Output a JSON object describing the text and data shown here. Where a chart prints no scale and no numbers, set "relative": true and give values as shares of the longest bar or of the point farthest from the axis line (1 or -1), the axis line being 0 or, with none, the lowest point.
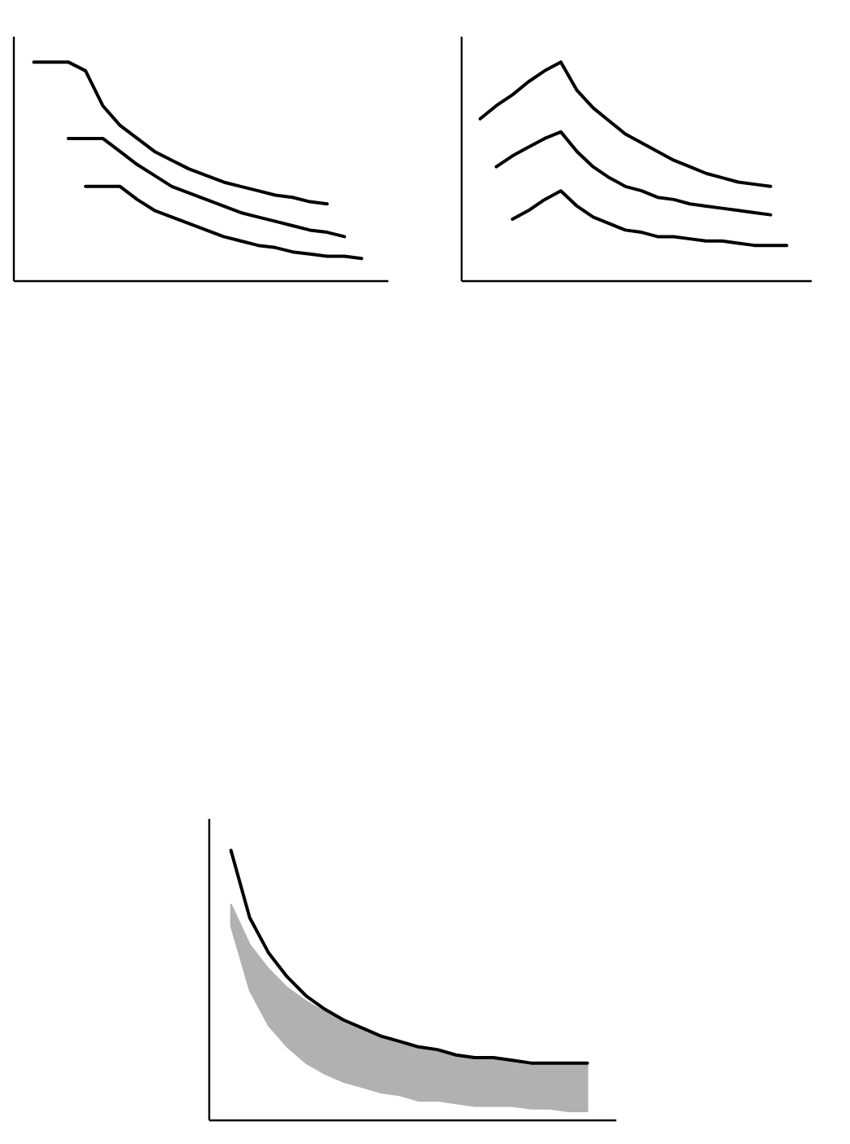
{
  "chart_data": [
    {
      "type": "line",
      "relative": true,
      "tick_labels": false,
      "categories": [
        null,
        null,
        null,
        null,
        null,
        null,
        null,
        null,
        null,
        null,
        null,
        null,
        null,
        null,
        null,
        null,
        null,
        null,
        null,
        null
      ],
      "series": [
        {
          "color": "#000000",
          "values": [
            1.0,
            1.0,
            1.0,
            0.96,
            0.8,
            0.71,
            0.65,
            0.59,
            0.55,
            0.51,
            0.48,
            0.45,
            0.43,
            0.41,
            0.39,
            0.38,
            0.36,
            0.35,
            null,
            null
          ]
        },
        {
          "color": "#000000",
          "values": [
            null,
            null,
            0.65,
            0.65,
            0.65,
            0.59,
            0.53,
            0.48,
            0.43,
            0.4,
            0.37,
            0.34,
            0.31,
            0.29,
            0.27,
            0.25,
            0.23,
            0.22,
            0.2,
            null
          ]
        },
        {
          "color": "#000000",
          "values": [
            null,
            null,
            null,
            0.43,
            0.43,
            0.43,
            0.37,
            0.32,
            0.29,
            0.26,
            0.23,
            0.2,
            0.18,
            0.16,
            0.15,
            0.13,
            0.12,
            0.11,
            0.11,
            0.1
          ]
        }
      ]
    },
    {
      "type": "line",
      "relative": true,
      "tick_labels": false,
      "categories": [
        null,
        null,
        null,
        null,
        null,
        null,
        null,
        null,
        null,
        null,
        null,
        null,
        null,
        null,
        null,
        null,
        null,
        null,
        null,
        null
      ],
      "series": [
        {
          "color": "#000000",
          "values": [
            0.74,
            0.8,
            0.85,
            0.91,
            0.96,
            1.0,
            0.87,
            0.79,
            0.73,
            0.67,
            0.63,
            0.59,
            0.55,
            0.52,
            0.49,
            0.47,
            0.45,
            0.44,
            0.43,
            null
          ]
        },
        {
          "color": "#000000",
          "values": [
            null,
            0.52,
            0.57,
            0.61,
            0.65,
            0.68,
            0.59,
            0.52,
            0.47,
            0.43,
            0.41,
            0.38,
            0.37,
            0.35,
            0.34,
            0.33,
            0.32,
            0.31,
            0.3,
            null
          ]
        },
        {
          "color": "#000000",
          "values": [
            null,
            null,
            0.28,
            0.32,
            0.37,
            0.41,
            0.34,
            0.29,
            0.26,
            0.23,
            0.22,
            0.2,
            0.2,
            0.19,
            0.18,
            0.18,
            0.17,
            0.16,
            0.16,
            0.16
          ]
        }
      ]
    },
    {
      "type": "line",
      "relative": true,
      "tick_labels": false,
      "categories": [
        null,
        null,
        null,
        null,
        null,
        null,
        null,
        null,
        null,
        null,
        null,
        null,
        null,
        null,
        null,
        null,
        null,
        null,
        null,
        null
      ],
      "series": [
        {
          "color": "#000000",
          "values": [
            1.0,
            0.75,
            0.62,
            0.53,
            0.46,
            0.41,
            0.37,
            0.34,
            0.31,
            0.29,
            0.27,
            0.26,
            0.24,
            0.23,
            0.23,
            0.22,
            0.21,
            0.21,
            0.21,
            0.21
          ],
          "lower": [
            0.72,
            0.48,
            0.35,
            0.27,
            0.21,
            0.17,
            0.14,
            0.12,
            0.1,
            0.09,
            0.07,
            0.07,
            0.06,
            0.05,
            0.05,
            0.05,
            0.04,
            0.04,
            0.03,
            0.03
          ],
          "upper": [
            0.8,
            0.65,
            0.56,
            0.49,
            0.44,
            0.4,
            0.37,
            0.34,
            0.31,
            0.29,
            0.27,
            0.26,
            0.24,
            0.23,
            0.23,
            0.22,
            0.21,
            0.21,
            0.21,
            0.21
          ]
        }
      ]
    }
  ]
}
